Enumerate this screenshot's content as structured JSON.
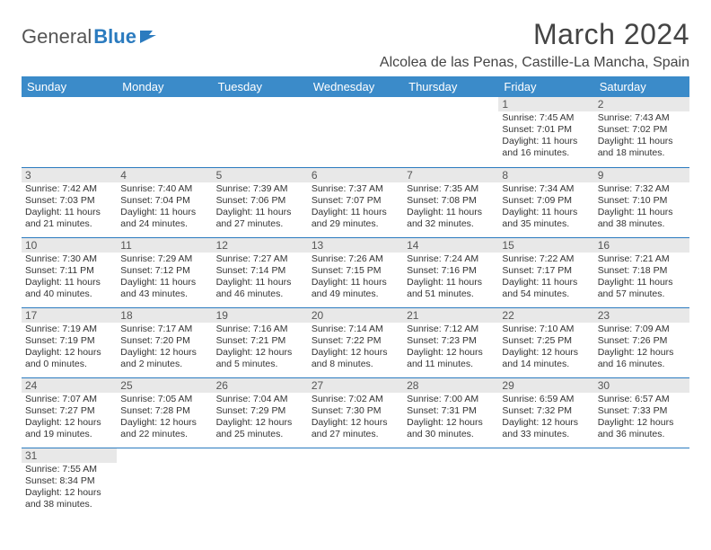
{
  "logo": {
    "part1": "General",
    "part2": "Blue"
  },
  "title": "March 2024",
  "location": "Alcolea de las Penas, Castille-La Mancha, Spain",
  "colors": {
    "header_bg": "#3b8bc9",
    "header_text": "#ffffff",
    "border": "#2b7bbf",
    "daynum_bg": "#e8e8e8",
    "logo_blue": "#2b7bbf"
  },
  "weekdays": [
    "Sunday",
    "Monday",
    "Tuesday",
    "Wednesday",
    "Thursday",
    "Friday",
    "Saturday"
  ],
  "weeks": [
    [
      null,
      null,
      null,
      null,
      null,
      {
        "n": "1",
        "sunrise": "7:45 AM",
        "sunset": "7:01 PM",
        "dayh": 11,
        "daym": 16
      },
      {
        "n": "2",
        "sunrise": "7:43 AM",
        "sunset": "7:02 PM",
        "dayh": 11,
        "daym": 18
      }
    ],
    [
      {
        "n": "3",
        "sunrise": "7:42 AM",
        "sunset": "7:03 PM",
        "dayh": 11,
        "daym": 21
      },
      {
        "n": "4",
        "sunrise": "7:40 AM",
        "sunset": "7:04 PM",
        "dayh": 11,
        "daym": 24
      },
      {
        "n": "5",
        "sunrise": "7:39 AM",
        "sunset": "7:06 PM",
        "dayh": 11,
        "daym": 27
      },
      {
        "n": "6",
        "sunrise": "7:37 AM",
        "sunset": "7:07 PM",
        "dayh": 11,
        "daym": 29
      },
      {
        "n": "7",
        "sunrise": "7:35 AM",
        "sunset": "7:08 PM",
        "dayh": 11,
        "daym": 32
      },
      {
        "n": "8",
        "sunrise": "7:34 AM",
        "sunset": "7:09 PM",
        "dayh": 11,
        "daym": 35
      },
      {
        "n": "9",
        "sunrise": "7:32 AM",
        "sunset": "7:10 PM",
        "dayh": 11,
        "daym": 38
      }
    ],
    [
      {
        "n": "10",
        "sunrise": "7:30 AM",
        "sunset": "7:11 PM",
        "dayh": 11,
        "daym": 40
      },
      {
        "n": "11",
        "sunrise": "7:29 AM",
        "sunset": "7:12 PM",
        "dayh": 11,
        "daym": 43
      },
      {
        "n": "12",
        "sunrise": "7:27 AM",
        "sunset": "7:14 PM",
        "dayh": 11,
        "daym": 46
      },
      {
        "n": "13",
        "sunrise": "7:26 AM",
        "sunset": "7:15 PM",
        "dayh": 11,
        "daym": 49
      },
      {
        "n": "14",
        "sunrise": "7:24 AM",
        "sunset": "7:16 PM",
        "dayh": 11,
        "daym": 51
      },
      {
        "n": "15",
        "sunrise": "7:22 AM",
        "sunset": "7:17 PM",
        "dayh": 11,
        "daym": 54
      },
      {
        "n": "16",
        "sunrise": "7:21 AM",
        "sunset": "7:18 PM",
        "dayh": 11,
        "daym": 57
      }
    ],
    [
      {
        "n": "17",
        "sunrise": "7:19 AM",
        "sunset": "7:19 PM",
        "dayh": 12,
        "daym": 0
      },
      {
        "n": "18",
        "sunrise": "7:17 AM",
        "sunset": "7:20 PM",
        "dayh": 12,
        "daym": 2
      },
      {
        "n": "19",
        "sunrise": "7:16 AM",
        "sunset": "7:21 PM",
        "dayh": 12,
        "daym": 5
      },
      {
        "n": "20",
        "sunrise": "7:14 AM",
        "sunset": "7:22 PM",
        "dayh": 12,
        "daym": 8
      },
      {
        "n": "21",
        "sunrise": "7:12 AM",
        "sunset": "7:23 PM",
        "dayh": 12,
        "daym": 11
      },
      {
        "n": "22",
        "sunrise": "7:10 AM",
        "sunset": "7:25 PM",
        "dayh": 12,
        "daym": 14
      },
      {
        "n": "23",
        "sunrise": "7:09 AM",
        "sunset": "7:26 PM",
        "dayh": 12,
        "daym": 16
      }
    ],
    [
      {
        "n": "24",
        "sunrise": "7:07 AM",
        "sunset": "7:27 PM",
        "dayh": 12,
        "daym": 19
      },
      {
        "n": "25",
        "sunrise": "7:05 AM",
        "sunset": "7:28 PM",
        "dayh": 12,
        "daym": 22
      },
      {
        "n": "26",
        "sunrise": "7:04 AM",
        "sunset": "7:29 PM",
        "dayh": 12,
        "daym": 25
      },
      {
        "n": "27",
        "sunrise": "7:02 AM",
        "sunset": "7:30 PM",
        "dayh": 12,
        "daym": 27
      },
      {
        "n": "28",
        "sunrise": "7:00 AM",
        "sunset": "7:31 PM",
        "dayh": 12,
        "daym": 30
      },
      {
        "n": "29",
        "sunrise": "6:59 AM",
        "sunset": "7:32 PM",
        "dayh": 12,
        "daym": 33
      },
      {
        "n": "30",
        "sunrise": "6:57 AM",
        "sunset": "7:33 PM",
        "dayh": 12,
        "daym": 36
      }
    ],
    [
      {
        "n": "31",
        "sunrise": "7:55 AM",
        "sunset": "8:34 PM",
        "dayh": 12,
        "daym": 38
      },
      null,
      null,
      null,
      null,
      null,
      null
    ]
  ]
}
